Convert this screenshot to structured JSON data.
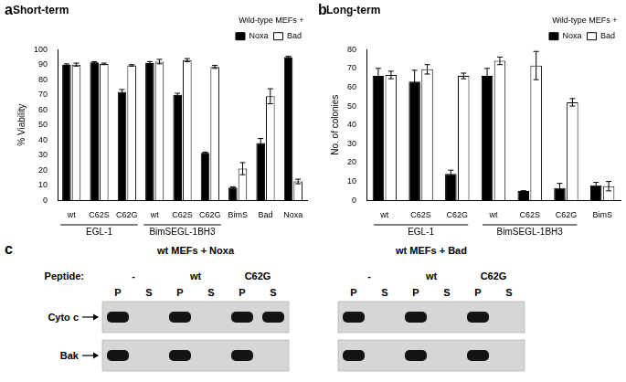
{
  "chart_data": [
    {
      "type": "bar",
      "title": "Short-term",
      "annotations": [
        "a"
      ],
      "y_label": "% Viability",
      "legend_title": "Wild-type MEFs +",
      "legend": "upper right",
      "grid": false,
      "categories": [
        "wt",
        "C62S",
        "C62G",
        "wt",
        "C62S",
        "C62G",
        "BimS",
        "Bad",
        "Noxa"
      ],
      "groups": [
        {
          "label": "EGL-1",
          "start": 0,
          "end": 2
        },
        {
          "label": "BimSEGL-1BH3",
          "start": 3,
          "end": 5
        }
      ],
      "series": [
        {
          "name": "Noxa",
          "color": "#000000",
          "values": [
            90,
            91.5,
            72,
            91,
            70,
            31.5,
            8.5,
            38,
            95
          ],
          "errors": [
            0.5,
            0.5,
            1.5,
            1,
            1,
            0.5,
            0.5,
            3,
            0.5
          ]
        },
        {
          "name": "Bad",
          "color": "#ffffff",
          "values": [
            90,
            90.5,
            89.5,
            92,
            93,
            88.5,
            21,
            69,
            12.5
          ],
          "errors": [
            1,
            0.5,
            0.5,
            1.5,
            1,
            1,
            4,
            5,
            1.5
          ]
        }
      ],
      "ylim": [
        0,
        100
      ],
      "yticks": [
        0,
        10,
        20,
        30,
        40,
        50,
        60,
        70,
        80,
        90,
        100
      ]
    },
    {
      "type": "bar",
      "title": "Long-term",
      "annotations": [
        "b"
      ],
      "y_label": "No. of colonies",
      "legend_title": "Wild-type MEFs +",
      "legend": "upper right",
      "grid": false,
      "categories": [
        "wt",
        "C62S",
        "C62G",
        "wt",
        "C62S",
        "C62G",
        "BimS"
      ],
      "groups": [
        {
          "label": "EGL-1",
          "start": 0,
          "end": 2
        },
        {
          "label": "BimSEGL-1BH3",
          "start": 3,
          "end": 5
        }
      ],
      "series": [
        {
          "name": "Noxa",
          "color": "#000000",
          "values": [
            66,
            63,
            14,
            66,
            5,
            6.5,
            8
          ],
          "errors": [
            4,
            6,
            2,
            4,
            0,
            2.5,
            1.5
          ]
        },
        {
          "name": "Bad",
          "color": "#ffffff",
          "values": [
            66.5,
            69.5,
            66,
            74,
            71.5,
            52,
            7.5
          ],
          "errors": [
            2,
            2.5,
            1.5,
            2,
            7.5,
            2,
            2.5
          ]
        }
      ],
      "ylim": [
        0,
        80
      ],
      "yticks": [
        0,
        10,
        20,
        30,
        40,
        50,
        60,
        70,
        80
      ]
    }
  ],
  "blots": {
    "annotations": [
      "c"
    ],
    "peptide_label": "Peptide:",
    "panels": [
      {
        "title": "wt MEFs + Noxa",
        "peptides": [
          "-",
          "wt",
          "C62G"
        ],
        "fractions": [
          "P",
          "S"
        ],
        "rows": [
          {
            "label": "Cyto c",
            "bands": [
              true,
              false,
              true,
              false,
              true,
              true
            ]
          },
          {
            "label": "Bak",
            "bands": [
              true,
              false,
              true,
              false,
              true,
              false
            ]
          }
        ]
      },
      {
        "title": "wt MEFs + Bad",
        "peptides": [
          "-",
          "wt",
          "C62G"
        ],
        "fractions": [
          "P",
          "S"
        ],
        "rows": [
          {
            "label": "Cyto c",
            "bands": [
              true,
              false,
              true,
              false,
              true,
              false
            ]
          },
          {
            "label": "Bak",
            "bands": [
              true,
              false,
              true,
              false,
              true,
              false
            ]
          }
        ]
      }
    ]
  }
}
